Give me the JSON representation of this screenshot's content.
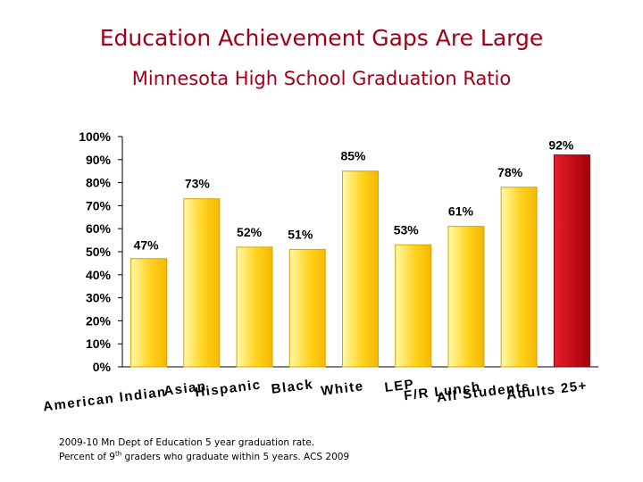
{
  "slide": {
    "title": "Education Achievement Gaps Are Large",
    "subtitle": "Minnesota High School Graduation Ratio"
  },
  "footnote": {
    "line1": "2009-10 Mn Dept of Education 5 year graduation rate.",
    "line2_prefix": "Percent of 9",
    "line2_sup": "th",
    "line2_suffix": " graders who graduate within 5 years.  ACS 2009"
  },
  "colors": {
    "bar_gold_light": "#fff9a8",
    "bar_gold_mid": "#ffd21f",
    "bar_gold_dark": "#f5b800",
    "bar_red_light": "#e8202a",
    "bar_red_dark": "#a30008",
    "title_red": "#a00018"
  },
  "chart_data": {
    "type": "bar",
    "categories": [
      "American Indian",
      "Asian",
      "Hispanic",
      "Black",
      "White",
      "LEP",
      "F/R Lunch",
      "All Students",
      "Adults 25+"
    ],
    "values": [
      47,
      73,
      52,
      51,
      85,
      53,
      61,
      78,
      92
    ],
    "data_labels": [
      "47%",
      "73%",
      "52%",
      "51%",
      "85%",
      "53%",
      "61%",
      "78%",
      "92%"
    ],
    "highlight_index": 8,
    "ylim": [
      0,
      100
    ],
    "yticks": [
      "0%",
      "10%",
      "20%",
      "30%",
      "40%",
      "50%",
      "60%",
      "70%",
      "80%",
      "90%",
      "100%"
    ],
    "grid": false,
    "legend": "none",
    "title": "",
    "xlabel": "",
    "ylabel": ""
  }
}
